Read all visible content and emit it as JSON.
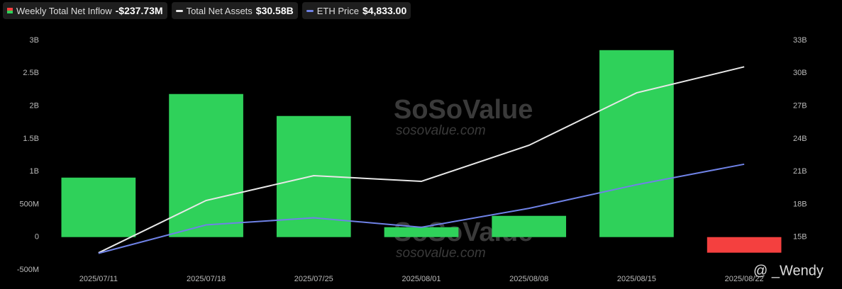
{
  "chart_data": {
    "type": "bar-line",
    "categories": [
      "2025/07/11",
      "2025/07/18",
      "2025/07/25",
      "2025/08/01",
      "2025/08/08",
      "2025/08/15",
      "2025/08/22"
    ],
    "series": [
      {
        "name": "Weekly Total Net Inflow",
        "headline": "-$237.73M",
        "type": "bar",
        "axis": "y",
        "color": "#2fd15a",
        "negative_color": "#f4403f",
        "values": [
          907,
          2182,
          1847,
          151,
          324,
          2851,
          -237.73
        ]
      },
      {
        "name": "Total Net Assets",
        "headline": "$30.58B",
        "type": "line",
        "axis": "y2",
        "color": "#e8e8e8",
        "values": [
          13.56,
          18.35,
          20.62,
          20.1,
          23.4,
          28.2,
          30.58
        ]
      },
      {
        "name": "ETH Price",
        "headline": "$4,833.00",
        "type": "line",
        "axis": "y3",
        "color": "#6f82e6",
        "values": [
          2950,
          3550,
          3700,
          3500,
          3900,
          4400,
          4833
        ]
      }
    ],
    "ylim": [
      -500,
      3000
    ],
    "yticks": [
      {
        "value": -500,
        "label": "-500M"
      },
      0,
      {
        "value": 500,
        "label": "500M"
      },
      {
        "value": 1000,
        "label": "1B"
      },
      {
        "value": 1500,
        "label": "1.5B"
      },
      {
        "value": 2000,
        "label": "2B"
      },
      {
        "value": 2500,
        "label": "2.5B"
      },
      {
        "value": 3000,
        "label": "3B"
      }
    ],
    "y2lim": [
      12,
      33
    ],
    "y2ticks": [
      {
        "value": 15,
        "label": "15B"
      },
      {
        "value": 18,
        "label": "18B"
      },
      {
        "value": 21,
        "label": "21B"
      },
      {
        "value": 24,
        "label": "24B"
      },
      {
        "value": 27,
        "label": "27B"
      },
      {
        "value": 30,
        "label": "30B"
      },
      {
        "value": 33,
        "label": "33B"
      }
    ],
    "y3lim": [
      2600,
      7450
    ],
    "grid": false,
    "watermarks": [
      "SoSoValue",
      "sosovalue.com",
      "@ _Wendy"
    ]
  }
}
